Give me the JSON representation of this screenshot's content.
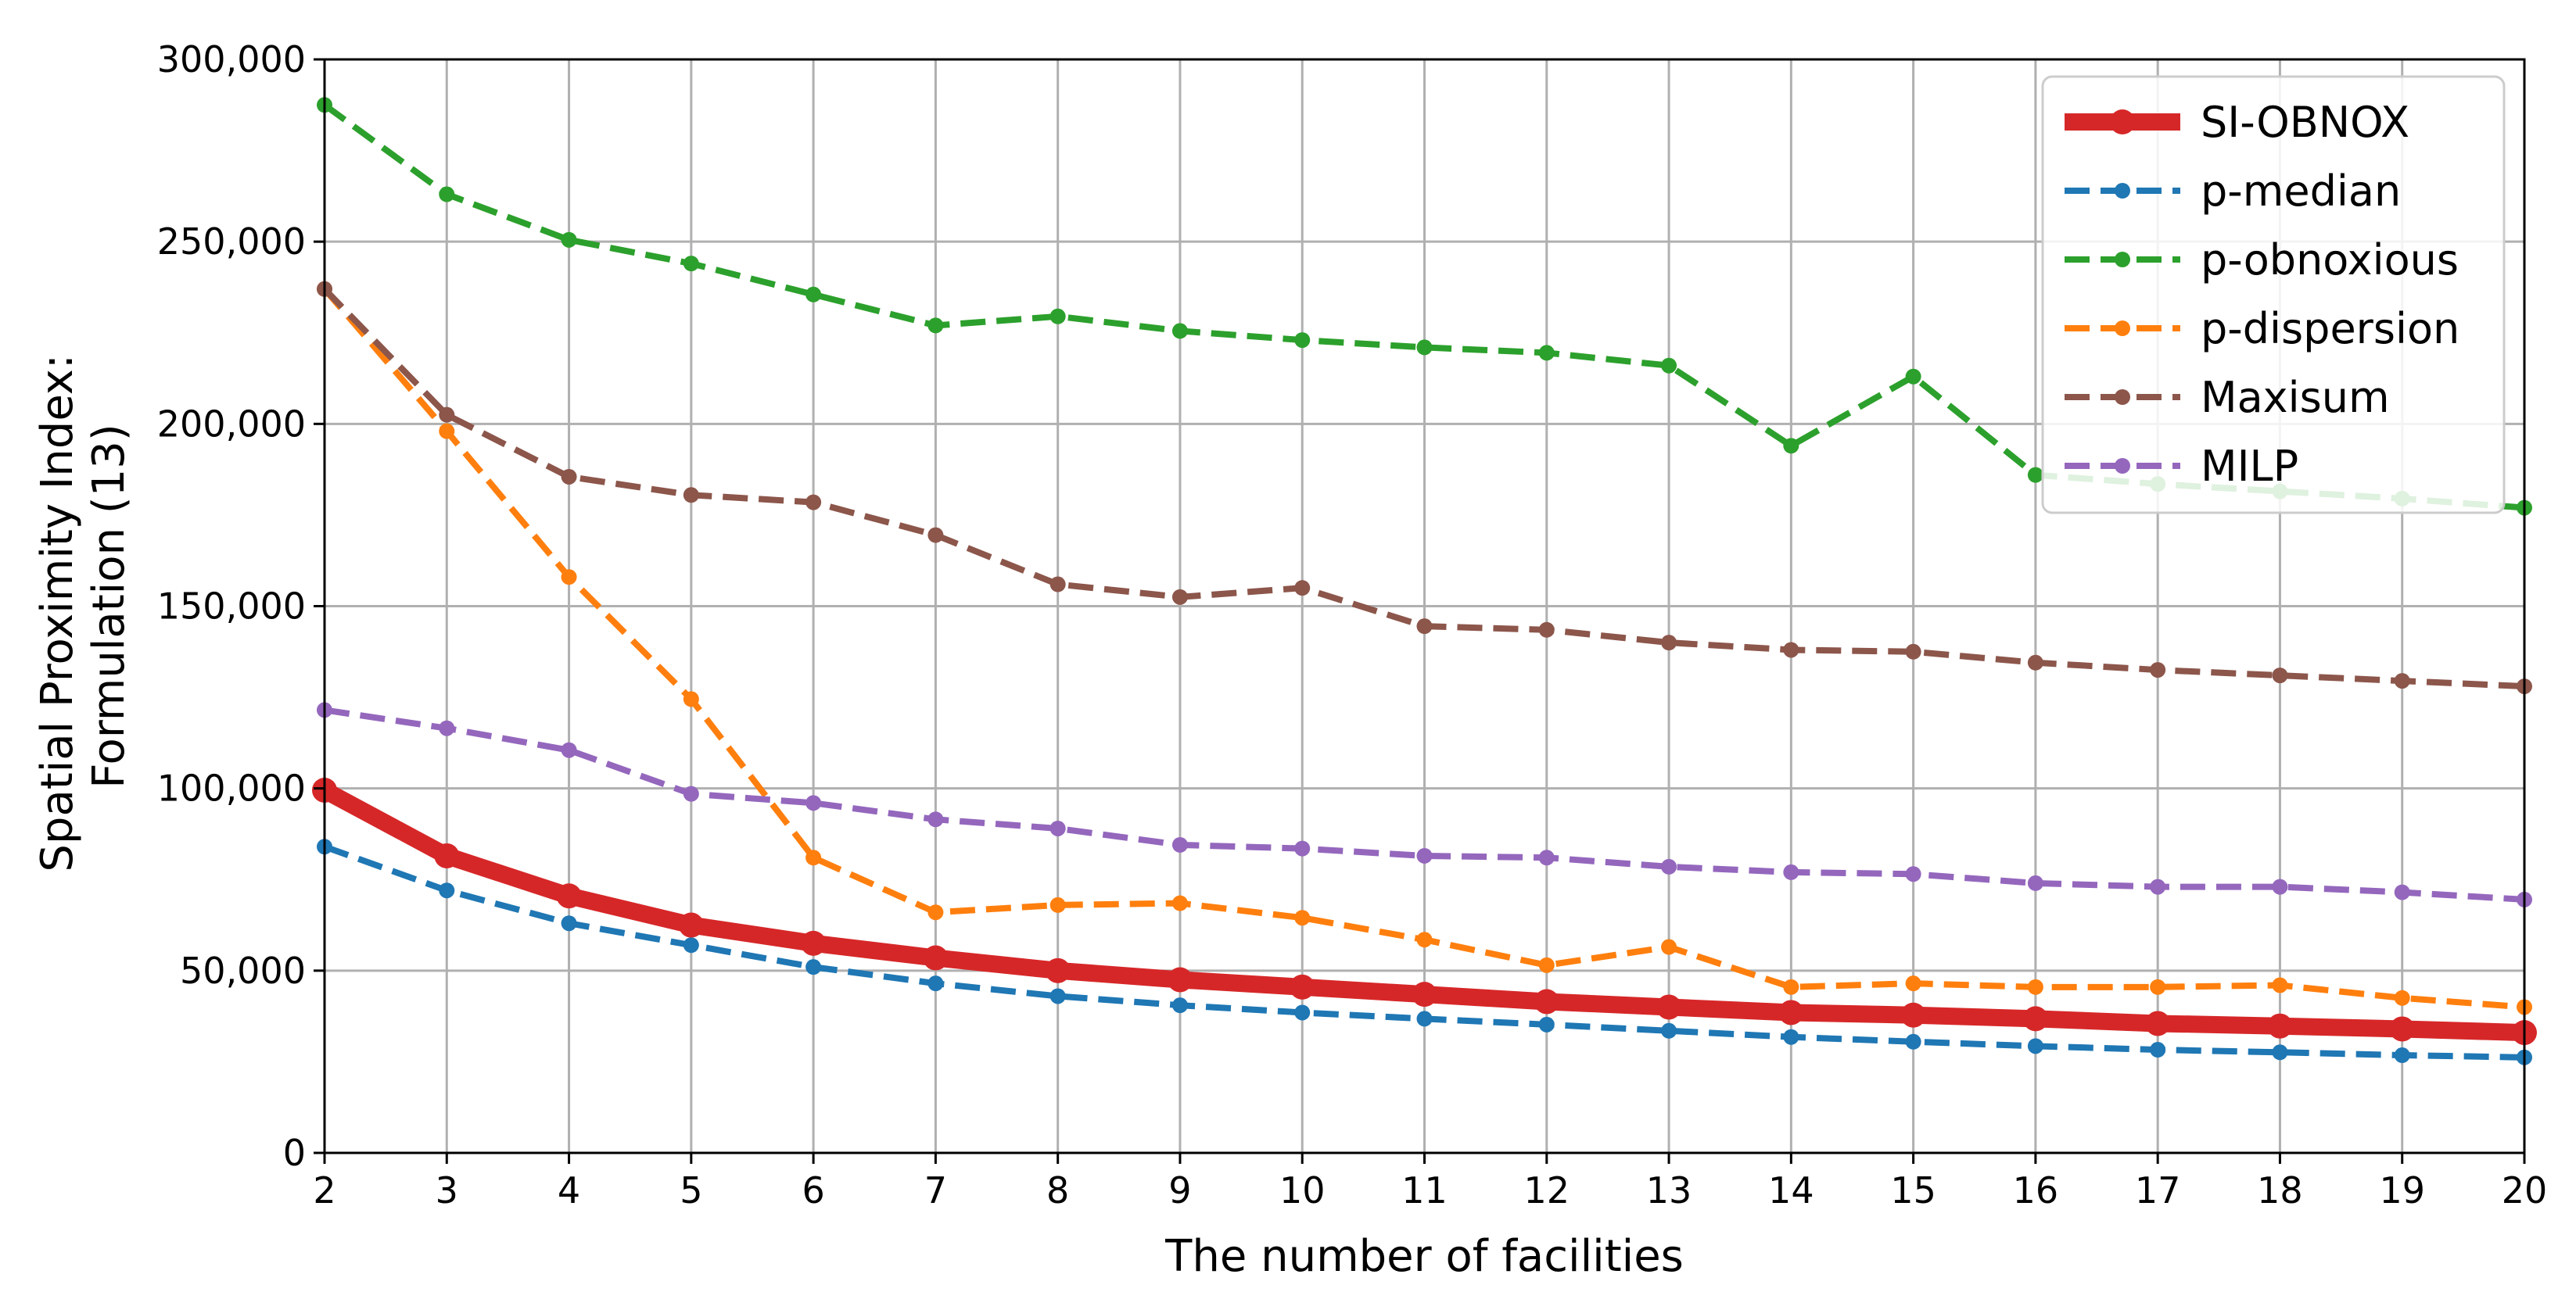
{
  "chart_data": {
    "type": "line",
    "xlabel": "The number of facilities",
    "ylabel_lines": [
      "Spatial Proximity Index:",
      "Formulation (13)"
    ],
    "x": [
      2,
      3,
      4,
      5,
      6,
      7,
      8,
      9,
      10,
      11,
      12,
      13,
      14,
      15,
      16,
      17,
      18,
      19,
      20
    ],
    "xlim": [
      2,
      20
    ],
    "ylim": [
      0,
      300000
    ],
    "x_tick_labels": [
      "2",
      "3",
      "4",
      "5",
      "6",
      "7",
      "8",
      "9",
      "10",
      "11",
      "12",
      "13",
      "14",
      "15",
      "16",
      "17",
      "18",
      "19",
      "20"
    ],
    "y_ticks": [
      0,
      50000,
      100000,
      150000,
      200000,
      250000,
      300000
    ],
    "y_tick_labels": [
      "0",
      "50,000",
      "100,000",
      "150,000",
      "200,000",
      "250,000",
      "300,000"
    ],
    "grid": true,
    "legend_position": "top-right",
    "series": [
      {
        "name": "SI-OBNOX",
        "color": "#d62728",
        "style": "solid",
        "values": [
          99500,
          81500,
          70500,
          62500,
          57500,
          53500,
          50000,
          47500,
          45500,
          43500,
          41500,
          40000,
          38500,
          37800,
          36800,
          35500,
          34800,
          34000,
          33000
        ]
      },
      {
        "name": "p-median",
        "color": "#1f77b4",
        "style": "dashed",
        "values": [
          84000,
          72000,
          63000,
          57000,
          51000,
          46500,
          43000,
          40500,
          38500,
          36800,
          35200,
          33500,
          31800,
          30500,
          29300,
          28300,
          27600,
          26800,
          26200
        ]
      },
      {
        "name": "p-obnoxious",
        "color": "#2ca02c",
        "style": "dashed",
        "values": [
          287500,
          263000,
          250500,
          244000,
          235500,
          227000,
          229500,
          225500,
          223000,
          221000,
          219500,
          216000,
          194000,
          213000,
          186000,
          183500,
          181500,
          179500,
          177000
        ]
      },
      {
        "name": "p-dispersion",
        "color": "#ff7f0e",
        "style": "dashed",
        "values": [
          237000,
          198000,
          158000,
          124500,
          81000,
          66000,
          68000,
          68500,
          64500,
          58500,
          51500,
          56500,
          45500,
          46500,
          45500,
          45500,
          46000,
          42500,
          40000
        ]
      },
      {
        "name": "Maxisum",
        "color": "#8c564b",
        "style": "dashed",
        "values": [
          237000,
          202500,
          185500,
          180500,
          178500,
          169500,
          156000,
          152500,
          155000,
          144500,
          143500,
          140000,
          138000,
          137500,
          134500,
          132500,
          131000,
          129500,
          128000
        ]
      },
      {
        "name": "MILP",
        "color": "#9467bd",
        "style": "dashed",
        "values": [
          121500,
          116500,
          110500,
          98500,
          96000,
          91500,
          89000,
          84500,
          83500,
          81500,
          81000,
          78500,
          77000,
          76500,
          74000,
          73000,
          73000,
          71500,
          69500
        ]
      }
    ]
  }
}
